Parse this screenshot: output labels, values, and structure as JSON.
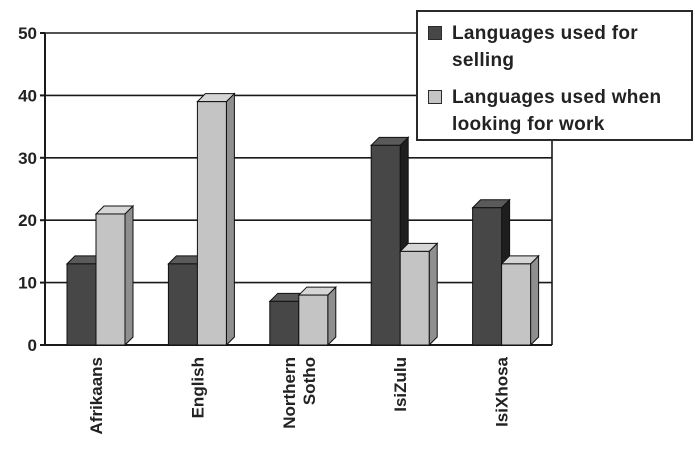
{
  "chart_data": {
    "type": "bar",
    "categories": [
      [
        "Afrikaans"
      ],
      [
        "English"
      ],
      [
        "Northern",
        "Sotho"
      ],
      [
        "IsiZulu"
      ],
      [
        "IsiXhosa"
      ]
    ],
    "series": [
      {
        "name": "Languages used for selling",
        "values": [
          13,
          13,
          7,
          32,
          22
        ]
      },
      {
        "name": "Languages used when looking for work",
        "values": [
          21,
          39,
          8,
          15,
          13
        ]
      }
    ],
    "yticks": [
      "0",
      "10",
      "20",
      "30",
      "40",
      "50"
    ],
    "ylim": [
      0,
      50
    ],
    "grid": true,
    "legend_position": "top-right"
  },
  "colors": {
    "series_front": [
      "#474747",
      "#c4c4c4"
    ],
    "series_top": [
      "#5a5a5a",
      "#d6d6d6"
    ],
    "series_side": [
      "#1e1e1e",
      "#8f8f8f"
    ],
    "axis": "#1a1a1a",
    "grid": "#1a1a1a"
  }
}
